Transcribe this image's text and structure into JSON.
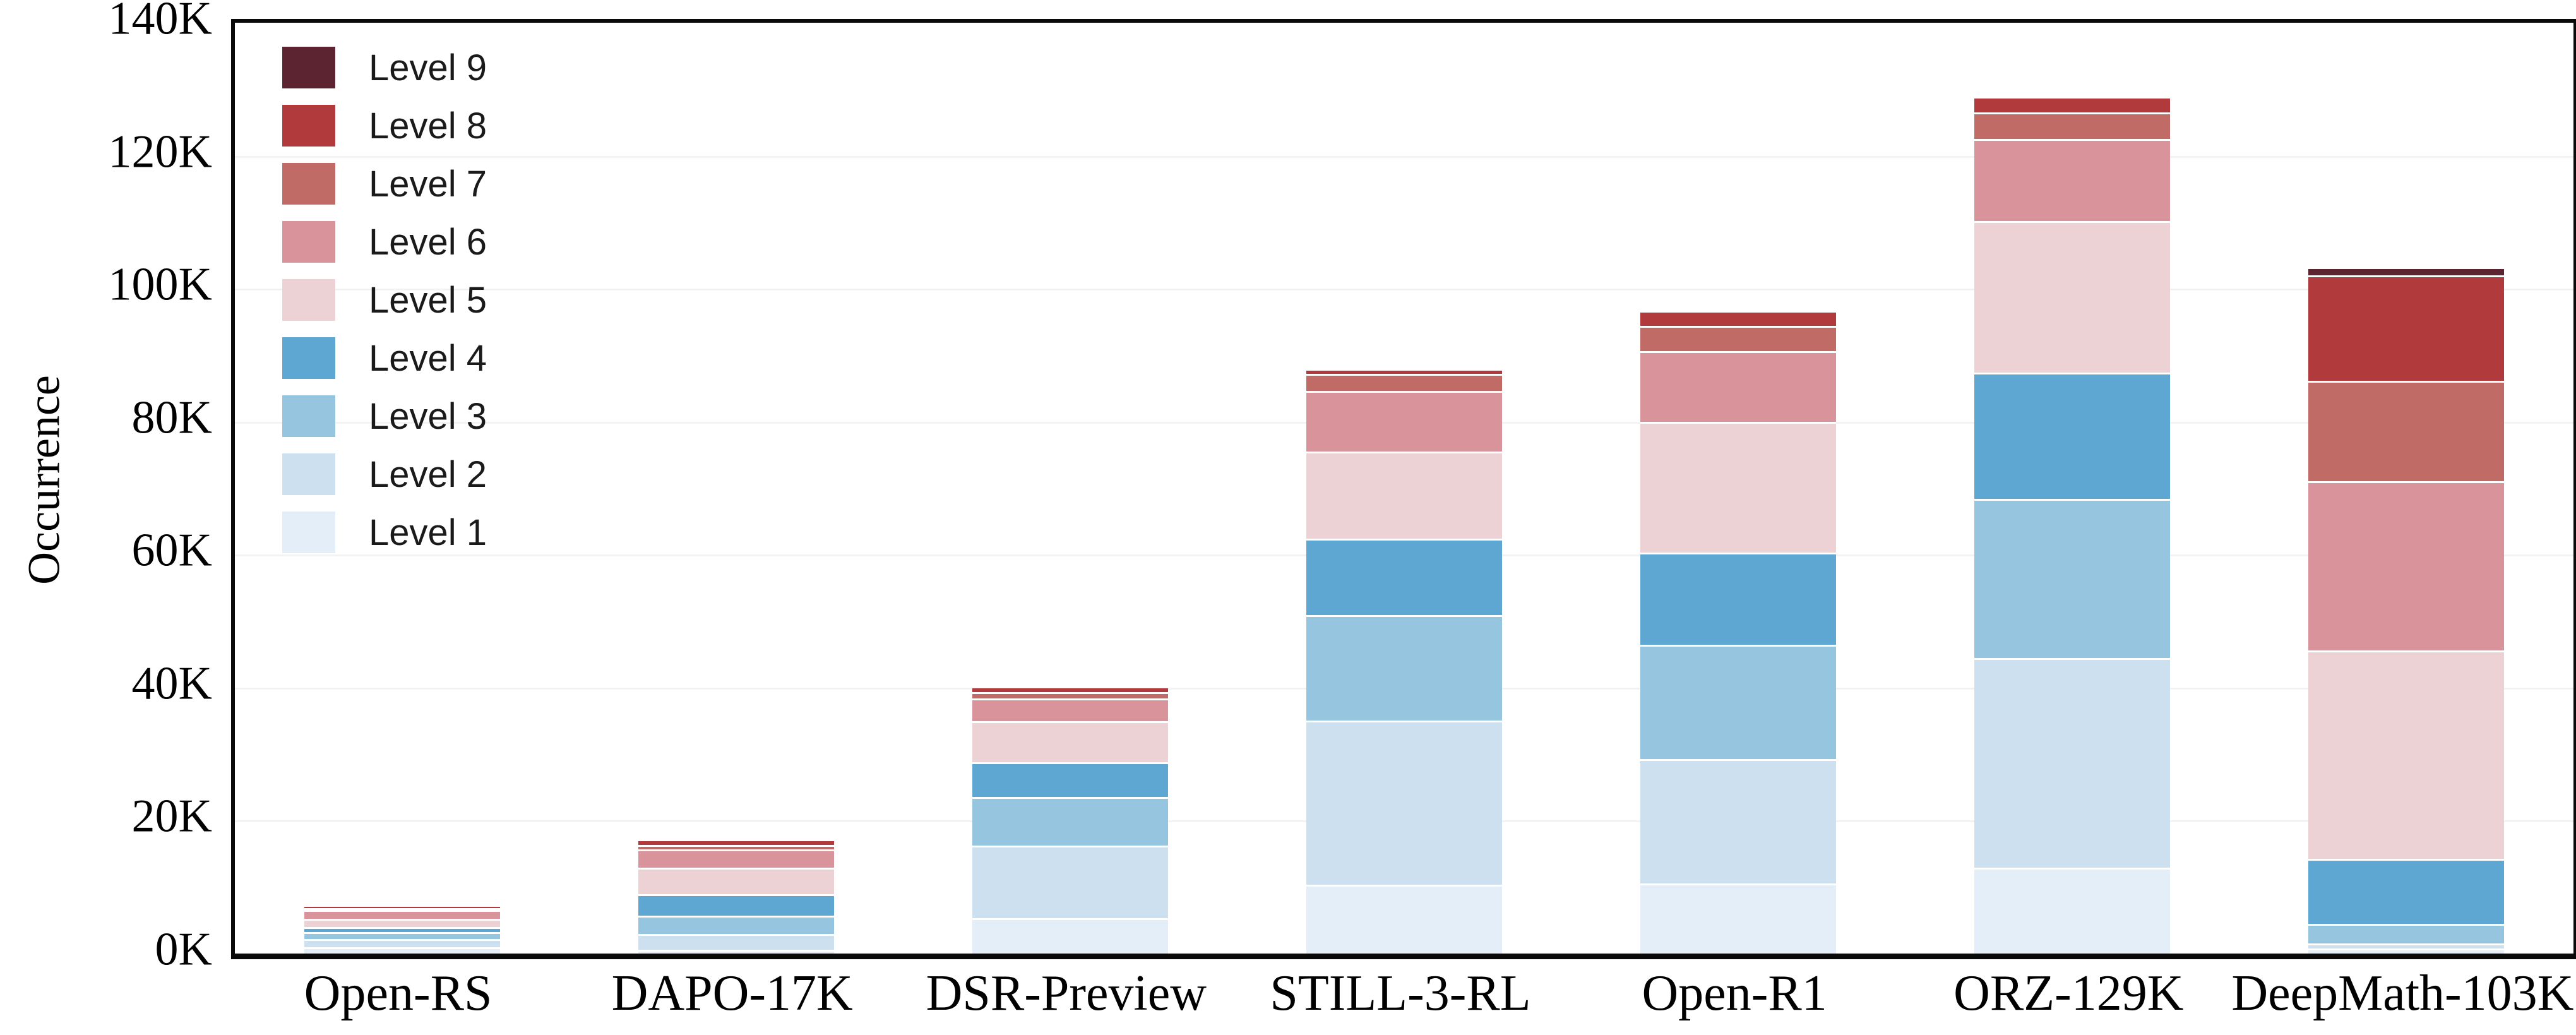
{
  "figure": {
    "background_color": "#ffffff",
    "axis_color": "#0a0a0a",
    "gridline_color": "#f3f3f3",
    "segment_separator_color": "#ffffff"
  },
  "chart_data": {
    "type": "bar",
    "stacked": true,
    "title": "",
    "xlabel": "",
    "ylabel": "Occurrence",
    "values_unit": "thousands of occurrences (K)",
    "ylim": [
      0,
      140
    ],
    "ytick_values": [
      0,
      20,
      40,
      60,
      80,
      100,
      120,
      140
    ],
    "ytick_labels": [
      "0K",
      "20K",
      "40K",
      "60K",
      "80K",
      "100K",
      "120K",
      "140K"
    ],
    "grid": "faint horizontal gridlines every 20K",
    "legend_position": "upper left inside plot",
    "legend_order": [
      "Level 9",
      "Level 8",
      "Level 7",
      "Level 6",
      "Level 5",
      "Level 4",
      "Level 3",
      "Level 2",
      "Level 1"
    ],
    "categories": [
      "Open-RS",
      "DAPO-17K",
      "DSR-Preview",
      "STILL-3-RL",
      "Open-R1",
      "ORZ-129K",
      "DeepMath-103K"
    ],
    "approx_totals": [
      7.0,
      16.9,
      39.9,
      87.7,
      96.4,
      128.6,
      103.0
    ],
    "series": [
      {
        "name": "Level 1",
        "color": "#e4eef8",
        "values": [
          0.7,
          0.3,
          5.0,
          10.1,
          10.3,
          12.6,
          0.5
        ]
      },
      {
        "name": "Level 2",
        "color": "#cce0ef",
        "values": [
          1.2,
          2.4,
          11.0,
          24.7,
          18.7,
          31.6,
          0.7
        ]
      },
      {
        "name": "Level 3",
        "color": "#96c5df",
        "values": [
          1.0,
          2.7,
          7.3,
          15.8,
          17.2,
          23.9,
          3.0
        ]
      },
      {
        "name": "Level 4",
        "color": "#5ea7d2",
        "values": [
          0.8,
          3.2,
          5.2,
          11.5,
          13.8,
          19.0,
          9.8
        ]
      },
      {
        "name": "Level 5",
        "color": "#ecd2d5",
        "values": [
          1.2,
          4.0,
          6.2,
          13.1,
          19.7,
          22.8,
          31.3
        ]
      },
      {
        "name": "Level 6",
        "color": "#d9939a",
        "values": [
          1.4,
          2.8,
          3.4,
          9.1,
          10.6,
          12.3,
          25.5
        ]
      },
      {
        "name": "Level 7",
        "color": "#c16b67",
        "values": [
          0.3,
          0.7,
          0.9,
          2.6,
          3.8,
          4.0,
          15.1
        ]
      },
      {
        "name": "Level 8",
        "color": "#b13a3d",
        "values": [
          0.4,
          0.8,
          0.9,
          0.8,
          2.3,
          2.4,
          15.8
        ]
      },
      {
        "name": "Level 9",
        "color": "#5c2330",
        "values": [
          0,
          0,
          0,
          0,
          0,
          0,
          1.3
        ]
      }
    ]
  }
}
